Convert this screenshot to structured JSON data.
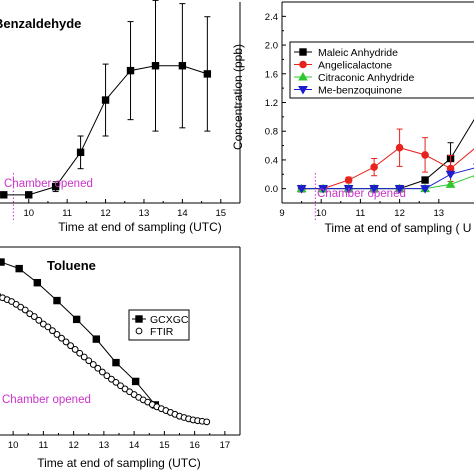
{
  "chart_data": [
    {
      "type": "line",
      "title": "Benzaldehyde",
      "xlabel": "Time at end of sampling (UTC)",
      "ylabel": "",
      "xlim": [
        9.2,
        15.5
      ],
      "ylim": [
        -0.05,
        1.18
      ],
      "xticks": [
        10,
        11,
        12,
        13,
        14,
        15
      ],
      "xtick_labels": [
        "10",
        "11",
        "12",
        "13",
        "14",
        "15"
      ],
      "annotation": "Chamber opened",
      "chamber_opened_x": 9.6,
      "series": [
        {
          "name": "",
          "color": "#000000",
          "marker": "square-filled",
          "x": [
            9.35,
            10.0,
            10.7,
            11.35,
            12.0,
            12.65,
            13.3,
            14.0,
            14.65
          ],
          "y": [
            0.0,
            0.0,
            0.05,
            0.26,
            0.58,
            0.76,
            0.79,
            0.79,
            0.74
          ],
          "err": [
            0.0,
            0.0,
            0.03,
            0.1,
            0.22,
            0.3,
            0.4,
            0.38,
            0.35
          ]
        }
      ]
    },
    {
      "type": "line",
      "title": "",
      "xlabel": "Time at end of sampling ( U",
      "ylabel": "Concentration (ppb)",
      "xlim": [
        9,
        14
      ],
      "ylim": [
        -0.2,
        2.6
      ],
      "xticks": [
        9,
        10,
        11,
        12,
        13
      ],
      "xtick_labels": [
        "9",
        "10",
        "11",
        "12",
        "13"
      ],
      "yticks": [
        0.0,
        0.4,
        0.8,
        1.2,
        1.6,
        2.0,
        2.4
      ],
      "ytick_labels": [
        "0.0",
        "0.4",
        "0.8",
        "1.2",
        "1.6",
        "2.0",
        "2.4"
      ],
      "annotation": "Chamber opened",
      "chamber_opened_x": 9.85,
      "legend": "top-right",
      "series": [
        {
          "name": "Maleic Anhydride",
          "color": "#000000",
          "marker": "square-filled",
          "x": [
            9.5,
            10.05,
            10.7,
            11.35,
            12.0,
            12.65,
            13.3,
            14.0
          ],
          "y": [
            0.0,
            0.0,
            0.0,
            0.0,
            0.0,
            0.12,
            0.42,
            1.05
          ],
          "err": [
            0,
            0,
            0,
            0,
            0,
            0,
            0.22,
            0
          ]
        },
        {
          "name": "Angelicalactone",
          "color": "#e8221c",
          "marker": "circle-filled",
          "x": [
            9.5,
            10.05,
            10.7,
            11.35,
            12.0,
            12.65,
            13.3,
            14.0
          ],
          "y": [
            0.0,
            0.0,
            0.12,
            0.3,
            0.57,
            0.47,
            0.28,
            0.6
          ],
          "err": [
            0,
            0,
            0.04,
            0.12,
            0.26,
            0.24,
            0.18,
            0
          ]
        },
        {
          "name": "Citraconic Anhydride",
          "color": "#2ec82e",
          "marker": "triangle-up",
          "x": [
            9.5,
            10.05,
            10.7,
            11.35,
            12.0,
            12.65,
            13.3,
            14.0
          ],
          "y": [
            0.0,
            0.0,
            0.0,
            0.0,
            0.0,
            0.0,
            0.06,
            0.2
          ],
          "err": [
            0,
            0,
            0,
            0,
            0,
            0,
            0,
            0
          ]
        },
        {
          "name": "Me-benzoquinone",
          "color": "#1c1cd0",
          "marker": "triangle-down",
          "x": [
            9.5,
            10.05,
            10.7,
            11.35,
            12.0,
            12.65,
            13.3,
            14.0
          ],
          "y": [
            0.0,
            0.0,
            0.0,
            0.0,
            0.0,
            0.0,
            0.2,
            0.3
          ],
          "err": [
            0,
            0,
            0,
            0,
            0,
            0,
            0,
            0
          ]
        }
      ]
    },
    {
      "type": "line",
      "title": "Toluene",
      "xlabel": "Time at end of sampling (UTC)",
      "ylabel": "",
      "xlim": [
        9.5,
        17.5
      ],
      "ylim": [
        0,
        1
      ],
      "xticks": [
        10,
        11,
        12,
        13,
        14,
        15,
        16,
        17
      ],
      "xtick_labels": [
        "10",
        "11",
        "12",
        "13",
        "14",
        "15",
        "16",
        "17"
      ],
      "annotation": "Chamber opened",
      "legend": "top-right",
      "series": [
        {
          "name": "GCXGC",
          "color": "#000000",
          "marker": "square-filled",
          "x": [
            9.6,
            10.2,
            10.8,
            11.45,
            12.1,
            12.75,
            13.4,
            14.05,
            14.7
          ],
          "y": [
            0.92,
            0.885,
            0.81,
            0.715,
            0.615,
            0.51,
            0.385,
            0.285,
            0.16
          ]
        },
        {
          "name": "FTIR",
          "color": "#000000",
          "marker": "circle-open",
          "x": [
            9.5,
            9.65,
            9.8,
            9.95,
            10.1,
            10.25,
            10.4,
            10.55,
            10.7,
            10.85,
            11.0,
            11.15,
            11.3,
            11.45,
            11.6,
            11.75,
            11.9,
            12.05,
            12.2,
            12.35,
            12.5,
            12.65,
            12.8,
            12.95,
            13.1,
            13.25,
            13.4,
            13.55,
            13.7,
            13.85,
            14.0,
            14.15,
            14.3,
            14.45,
            14.6,
            14.75,
            14.9,
            15.05,
            15.2,
            15.35,
            15.5,
            15.65,
            15.8,
            15.95,
            16.1,
            16.25,
            16.4
          ],
          "y": [
            0.74,
            0.73,
            0.72,
            0.71,
            0.695,
            0.68,
            0.665,
            0.645,
            0.63,
            0.61,
            0.59,
            0.575,
            0.555,
            0.535,
            0.515,
            0.495,
            0.475,
            0.455,
            0.435,
            0.415,
            0.395,
            0.375,
            0.355,
            0.335,
            0.315,
            0.297,
            0.28,
            0.262,
            0.245,
            0.23,
            0.215,
            0.2,
            0.187,
            0.175,
            0.162,
            0.15,
            0.14,
            0.13,
            0.12,
            0.11,
            0.1,
            0.093,
            0.086,
            0.08,
            0.076,
            0.073,
            0.07
          ]
        }
      ]
    }
  ]
}
